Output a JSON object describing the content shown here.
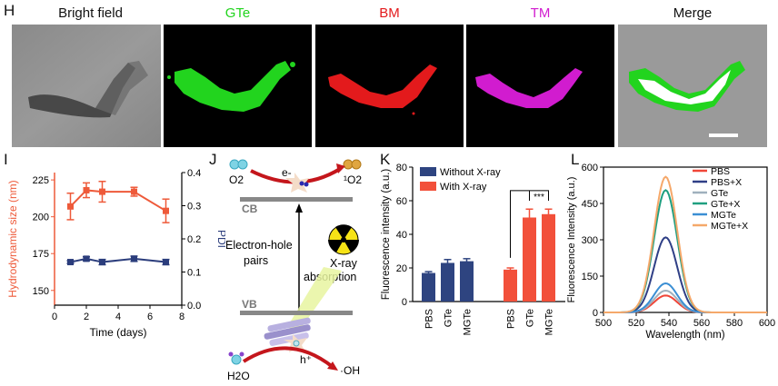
{
  "panel_labels": {
    "H": "H",
    "I": "I",
    "J": "J",
    "K": "K",
    "L": "L"
  },
  "colors": {
    "gte": "#22d41e",
    "bm": "#e31a1c",
    "tm": "#d11ccf",
    "size": "#ee5a3a",
    "pdi": "#2b3d7c",
    "without": "#2e4480",
    "with": "#f2503a"
  },
  "microscopy": {
    "titles": [
      "Bright field",
      "GTe",
      "BM",
      "TM",
      "Merge"
    ]
  },
  "panel_J": {
    "o2": "O2",
    "o2_product": "¹O2",
    "e_minus": "e-",
    "cb": "CB",
    "vb": "VB",
    "eh_pairs_1": "Electron-hole",
    "eh_pairs_2": "pairs",
    "xray_1": "X-ray",
    "xray_2": "absorption",
    "h_plus": "h⁺",
    "h2o": "H2O",
    "oh": "·OH"
  },
  "chart_data": [
    {
      "id": "I",
      "type": "line",
      "xlabel": "Time (days)",
      "ylabel": "Hydrodynamic size (nm)",
      "y2label": "PDI",
      "xlim": [
        0,
        8
      ],
      "xticks": [
        0,
        2,
        4,
        6,
        8
      ],
      "ylim": [
        140,
        230
      ],
      "yticks": [
        150,
        175,
        200,
        225
      ],
      "y2lim": [
        0,
        0.4
      ],
      "y2ticks": [
        "0.0",
        "0.1",
        "0.2",
        "0.3",
        "0.4"
      ],
      "series": [
        {
          "name": "Hydrodynamic size",
          "axis": "left",
          "x": [
            1,
            2,
            3,
            5,
            7
          ],
          "y": [
            207,
            218,
            217,
            217,
            204
          ],
          "err": [
            9,
            5,
            7,
            3,
            8
          ]
        },
        {
          "name": "PDI",
          "axis": "right",
          "x": [
            1,
            2,
            3,
            5,
            7
          ],
          "y": [
            0.13,
            0.14,
            0.13,
            0.14,
            0.13
          ],
          "err": [
            0.004,
            0.006,
            0.008,
            0.008,
            0.008
          ]
        }
      ]
    },
    {
      "id": "K",
      "type": "bar",
      "ylabel": "Fluorescence intensity (a.u.)",
      "ylim": [
        0,
        80
      ],
      "yticks": [
        0,
        20,
        40,
        60,
        80
      ],
      "legend": [
        "Without X-ray",
        "With X-ray"
      ],
      "groups": [
        {
          "name": "Without X-ray",
          "categories": [
            "PBS",
            "GTe",
            "MGTe"
          ],
          "values": [
            17,
            23,
            24
          ],
          "err": [
            0.8,
            2,
            1.5
          ]
        },
        {
          "name": "With X-ray",
          "categories": [
            "PBS",
            "GTe",
            "MGTe"
          ],
          "values": [
            19,
            50,
            52
          ],
          "err": [
            1,
            5,
            3
          ]
        }
      ],
      "annotation": "***"
    },
    {
      "id": "L",
      "type": "line",
      "xlabel": "Wavelength (nm)",
      "ylabel": "Fluorescence Intensity (a.u.)",
      "xlim": [
        500,
        600
      ],
      "xticks": [
        500,
        520,
        540,
        560,
        580,
        600
      ],
      "ylim": [
        0,
        600
      ],
      "yticks": [
        0,
        150,
        300,
        450,
        600
      ],
      "peak": 538,
      "series": [
        {
          "name": "PBS",
          "color": "#f04638",
          "peak": 70
        },
        {
          "name": "PBS+X",
          "color": "#2f3f86",
          "peak": 310
        },
        {
          "name": "GTe",
          "color": "#9fb0bd",
          "peak": 90
        },
        {
          "name": "GTe+X",
          "color": "#1f9f80",
          "peak": 505
        },
        {
          "name": "MGTe",
          "color": "#3b8fd4",
          "peak": 120
        },
        {
          "name": "MGTe+X",
          "color": "#f5a86a",
          "peak": 560
        }
      ]
    }
  ]
}
